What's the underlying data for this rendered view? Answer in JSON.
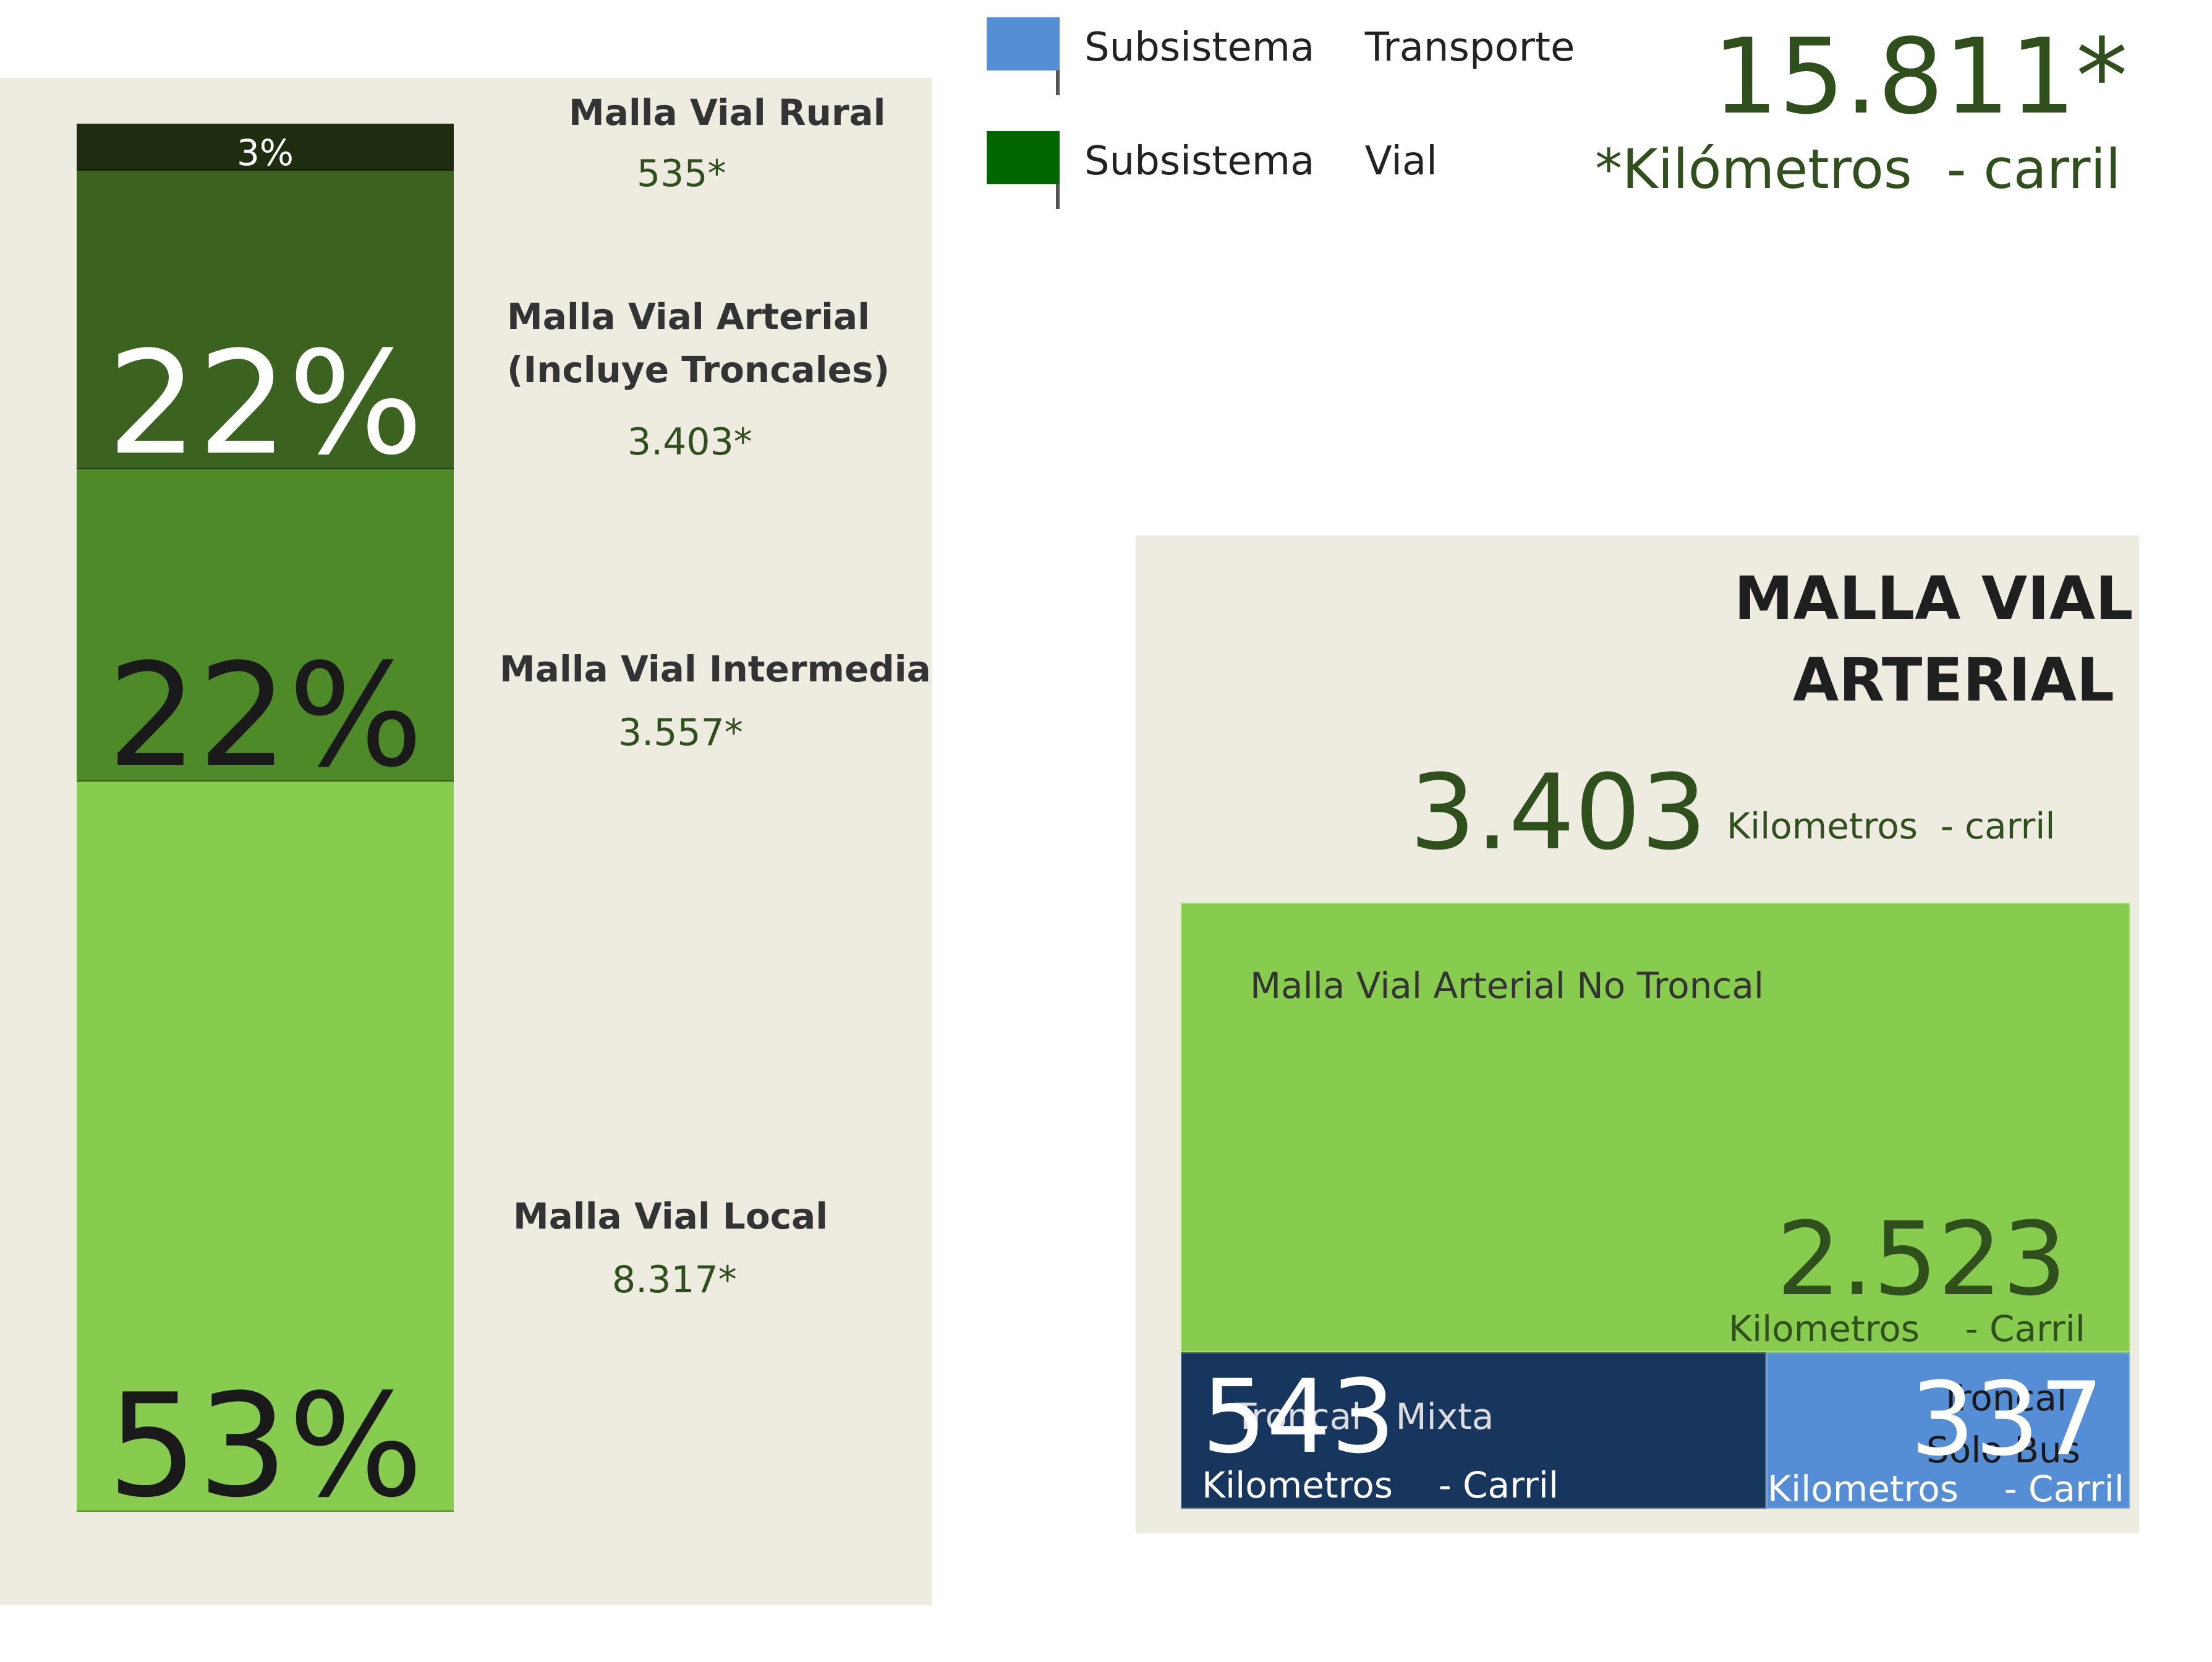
{
  "legend": [
    {
      "label": "Subsistema    Transporte",
      "color": "#558ed5"
    },
    {
      "label": "Subsistema    Vial",
      "color": "#006600"
    }
  ],
  "total": {
    "value": "15.811*",
    "unit": "*Kilómetros  - carril"
  },
  "chart_data": [
    {
      "type": "bar",
      "categories": [
        "Malla Vial Rural",
        "Malla Vial Arterial (Incluye Troncales)",
        "Malla Vial Intermedia",
        "Malla Vial Local"
      ],
      "values": [
        535,
        3403,
        3557,
        8317
      ],
      "series": [
        {
          "values": [
            535,
            3403,
            3557,
            8317
          ]
        }
      ],
      "segments": [
        {
          "label_lines": [
            "Malla Vial Rural"
          ],
          "value_text": "535*",
          "value": 535,
          "percent": 3,
          "percent_label": "3%",
          "color": "#1e2d10",
          "text_color": "#ffffff"
        },
        {
          "label_lines": [
            "Malla Vial Arterial",
            "(Incluye Troncales)"
          ],
          "value_text": "3.403*",
          "value": 3403,
          "percent": 22,
          "percent_label": "22%",
          "color": "#3c6220",
          "text_color": "#ffffff"
        },
        {
          "label_lines": [
            "Malla Vial Intermedia"
          ],
          "value_text": "3.557*",
          "value": 3557,
          "percent": 22,
          "percent_label": "22%",
          "color": "#4f8a29",
          "text_color": "#1a1a1a"
        },
        {
          "label_lines": [
            "Malla Vial Local"
          ],
          "value_text": "8.317*",
          "value": 8317,
          "percent": 53,
          "percent_label": "53%",
          "color": "#87cc4e",
          "text_color": "#1a1a1a"
        }
      ]
    },
    {
      "type": "treemap",
      "title_lines": [
        "MALLA VIAL",
        "ARTERIAL"
      ],
      "total_value": "3.403",
      "total_unit": "Kilometros  - carril",
      "categories": [
        "Malla Vial Arterial No Troncal",
        "Troncal Mixta",
        "Troncal Solo Bus"
      ],
      "values": [
        2523,
        543,
        337
      ],
      "cells": [
        {
          "label": "Malla Vial Arterial No Troncal",
          "value_text": "2.523",
          "value": 2523,
          "unit": "Kilometros    - Carril",
          "color": "#87cc4e",
          "text_color": "#2f4f1c",
          "label_color": "#333333"
        },
        {
          "label": "Troncal   Mixta",
          "value_text": "543",
          "value": 543,
          "unit": "Kilometros    - Carril",
          "color": "#17365d",
          "text_color": "#ffffff",
          "label_color": "#dddddd"
        },
        {
          "label": "Troncal\nSolo Bus",
          "value_text": "337",
          "value": 337,
          "unit": "Kilometros    - Carril",
          "color": "#558ed5",
          "text_color": "#ffffff",
          "label_color": "#1a1a1a"
        }
      ]
    }
  ]
}
